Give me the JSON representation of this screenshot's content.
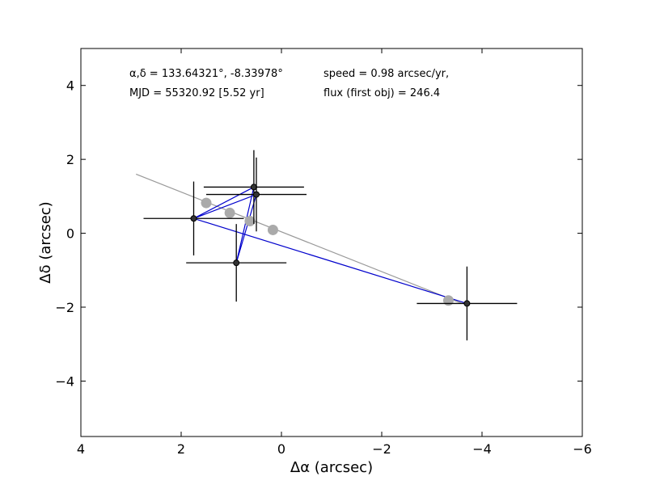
{
  "chart_data": {
    "type": "scatter",
    "xlabel": "Δα (arcsec)",
    "ylabel": "Δδ (arcsec)",
    "xlim": [
      4,
      -6
    ],
    "ylim": [
      -5.5,
      5
    ],
    "x_ticks": [
      4,
      2,
      0,
      -2,
      -4,
      -6
    ],
    "y_ticks": [
      4,
      2,
      0,
      -2,
      -4
    ],
    "x_tick_labels": [
      "4",
      "2",
      "0",
      "−2",
      "−4",
      "−6"
    ],
    "y_tick_labels": [
      "4",
      "2",
      "0",
      "−2",
      "−4"
    ],
    "grid": false,
    "annotations": {
      "coords": "α,δ = 133.64321°, -8.33978°",
      "mjd": "MJD = 55320.92 [5.52 yr]",
      "speed": "speed = 0.98 arcsec/yr,",
      "flux": "flux (first obj) = 246.4"
    },
    "observations": [
      {
        "x": 1.75,
        "y": 0.4,
        "xerr": 1.0,
        "yerr": 1.0
      },
      {
        "x": 0.55,
        "y": 1.25,
        "xerr": 1.0,
        "yerr": 1.0
      },
      {
        "x": 0.5,
        "y": 1.05,
        "xerr": 1.0,
        "yerr": 1.0
      },
      {
        "x": 0.9,
        "y": -0.8,
        "xerr": 1.0,
        "yerr": 1.05
      },
      {
        "x": -3.7,
        "y": -1.9,
        "xerr": 1.0,
        "yerr": 1.0
      }
    ],
    "observation_path_order": [
      0,
      2,
      3,
      1,
      0,
      4
    ],
    "model_points": [
      {
        "x": 1.5,
        "y": 0.82
      },
      {
        "x": 1.03,
        "y": 0.55
      },
      {
        "x": 0.63,
        "y": 0.33
      },
      {
        "x": 0.17,
        "y": 0.09
      },
      {
        "x": -3.33,
        "y": -1.82
      }
    ],
    "model_line": {
      "x": [
        2.9,
        -3.6
      ],
      "y": [
        1.6,
        -1.9
      ]
    },
    "colors": {
      "observations": "#000000",
      "observation_fill": "#333333",
      "path": "#0000cc",
      "model_points": "#aaaaaa",
      "model_line": "#999999"
    }
  }
}
